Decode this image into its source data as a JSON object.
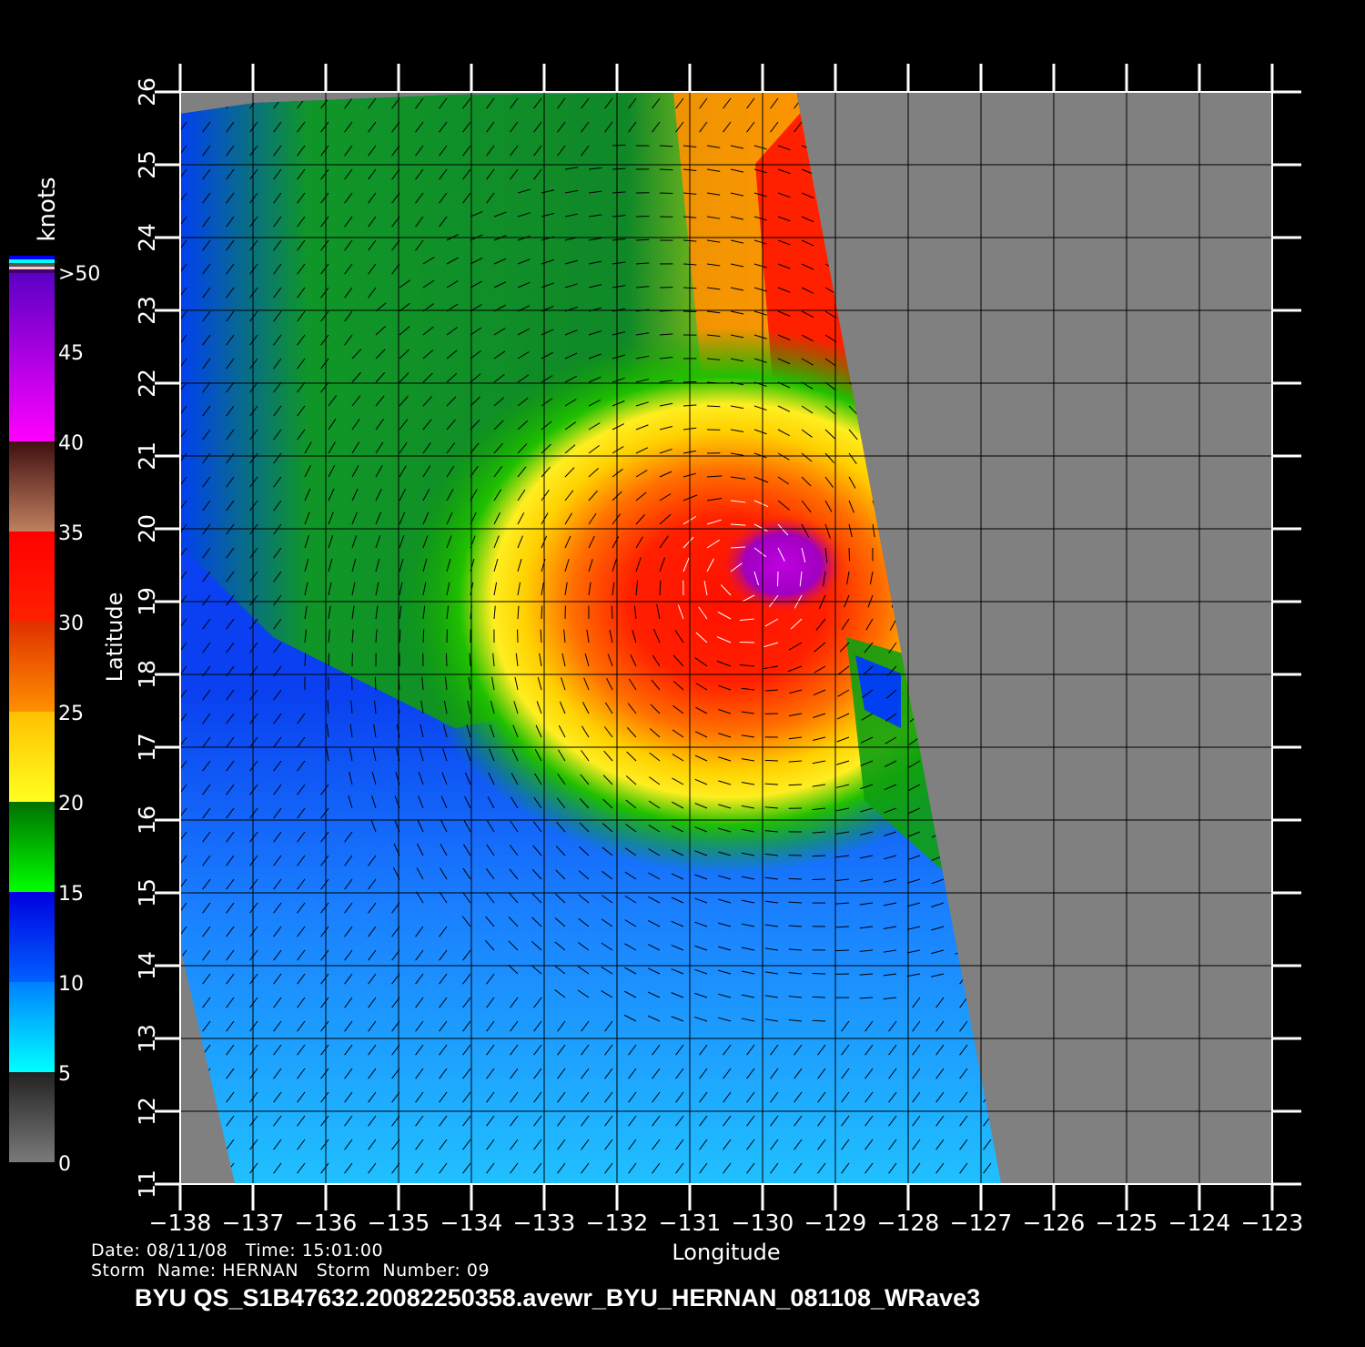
{
  "chart_data": {
    "type": "heatmap",
    "xlabel": "Longitude",
    "ylabel": "Latitude",
    "xlim": [
      -138,
      -123
    ],
    "ylim": [
      11,
      26
    ],
    "x_ticks": [
      "-138",
      "-137",
      "-136",
      "-135",
      "-134",
      "-133",
      "-132",
      "-131",
      "-130",
      "-129",
      "-128",
      "-127",
      "-126",
      "-125",
      "-124",
      "-123"
    ],
    "y_ticks": [
      "11",
      "12",
      "13",
      "14",
      "15",
      "16",
      "17",
      "18",
      "19",
      "20",
      "21",
      "22",
      "23",
      "24",
      "25",
      "26"
    ],
    "grid": true,
    "colorbar": {
      "label": "knots",
      "ticks": [
        "0",
        "5",
        "10",
        "15",
        "20",
        "25",
        "30",
        "35",
        "40",
        "45",
        ">50"
      ],
      "segments": [
        {
          "from": 0,
          "to": 5,
          "colors": [
            "#7a7a7a",
            "#222222"
          ]
        },
        {
          "from": 5,
          "to": 10,
          "colors": [
            "#00ffff",
            "#0080ff"
          ]
        },
        {
          "from": 10,
          "to": 15,
          "colors": [
            "#0060ff",
            "#0000e0"
          ]
        },
        {
          "from": 15,
          "to": 20,
          "colors": [
            "#00ff00",
            "#007000"
          ]
        },
        {
          "from": 20,
          "to": 25,
          "colors": [
            "#ffff20",
            "#ffc000"
          ]
        },
        {
          "from": 25,
          "to": 30,
          "colors": [
            "#ff9000",
            "#e03000"
          ]
        },
        {
          "from": 30,
          "to": 35,
          "colors": [
            "#ff2000",
            "#ff0000"
          ]
        },
        {
          "from": 35,
          "to": 40,
          "colors": [
            "#c08060",
            "#401010"
          ]
        },
        {
          "from": 40,
          "to": 50,
          "colors": [
            "#ff00ff",
            "#5000c0"
          ]
        }
      ]
    },
    "storm_center": {
      "lon": -130.3,
      "lat": 19.3
    },
    "no_data_color": "#808080"
  },
  "info": {
    "date_line": "Date: 08/11/08   Time: 15:01:00",
    "storm_line": "Storm  Name: HERNAN   Storm  Number: 09"
  },
  "title": "BYU  QS_S1B47632.20082250358.avewr_BYU_HERNAN_081108_WRave3"
}
